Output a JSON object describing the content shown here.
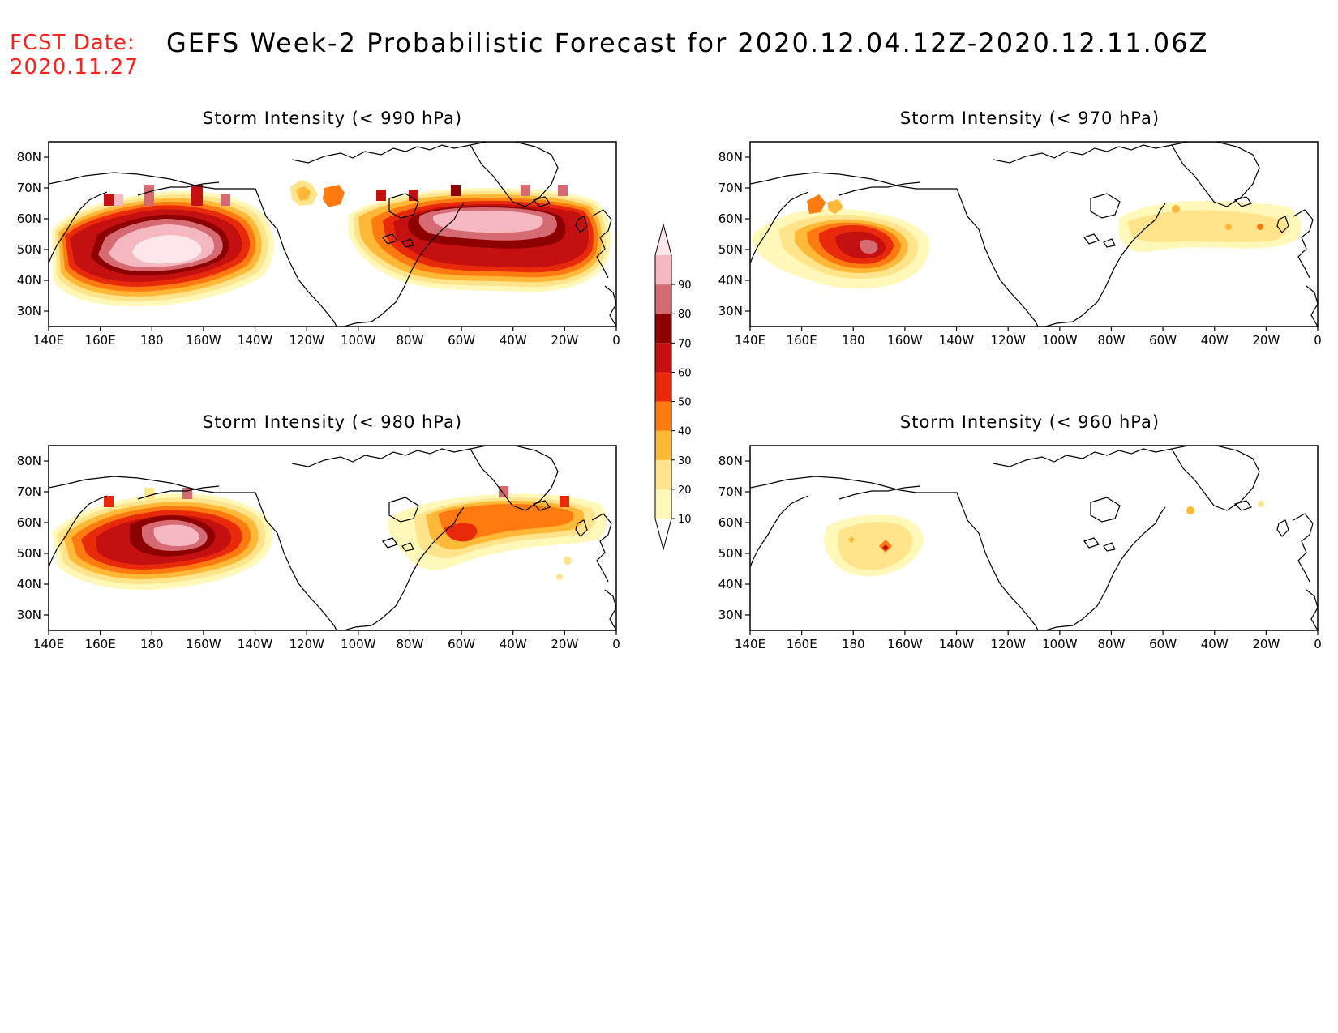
{
  "header": {
    "fcst_label": "FCST Date:",
    "fcst_date": "2020.11.27",
    "title": "GEFS Week-2 Probabilistic Forecast for 2020.12.04.12Z-2020.12.11.06Z"
  },
  "axes": {
    "lat_labels": [
      "80N",
      "70N",
      "60N",
      "50N",
      "40N",
      "30N"
    ],
    "lon_labels": [
      "140E",
      "160E",
      "180",
      "160W",
      "140W",
      "120W",
      "100W",
      "80W",
      "60W",
      "40W",
      "20W",
      "0"
    ],
    "lat_range": [
      25,
      85
    ],
    "lon_range": [
      140,
      360
    ]
  },
  "colors": {
    "10": "#fff8b8",
    "20": "#ffe48c",
    "30": "#ffb838",
    "40": "#ff7a10",
    "50": "#e82a0a",
    "60": "#c41010",
    "70": "#8c0000",
    "80": "#d66a72",
    "90": "#f6b8c0",
    "100": "#ffe6ea"
  },
  "colorbar": {
    "labels": [
      "10",
      "20",
      "30",
      "40",
      "50",
      "60",
      "70",
      "80",
      "90"
    ],
    "bins": [
      10,
      20,
      30,
      40,
      50,
      60,
      70,
      80,
      90
    ]
  },
  "panels": [
    {
      "title": "Storm Intensity (< 990 hPa)"
    },
    {
      "title": "Storm Intensity (< 970 hPa)"
    },
    {
      "title": "Storm Intensity (< 980 hPa)"
    },
    {
      "title": "Storm Intensity (< 960 hPa)"
    }
  ]
}
